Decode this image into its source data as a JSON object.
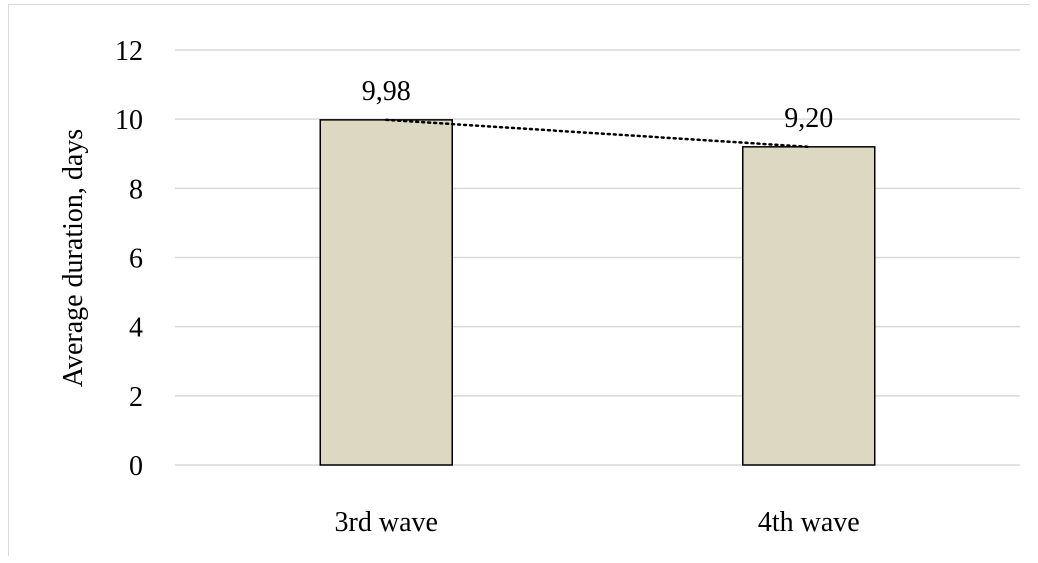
{
  "chart_data": {
    "type": "bar",
    "categories": [
      "3rd wave",
      "4th wave"
    ],
    "values": [
      9.98,
      9.2
    ],
    "data_labels": [
      "9,98",
      "9,20"
    ],
    "title": "",
    "xlabel": "",
    "ylabel": "Average duration, days",
    "ylim": [
      0,
      12
    ],
    "yticks": [
      0,
      2,
      4,
      6,
      8,
      10,
      12
    ],
    "ytick_labels": [
      "0",
      "2",
      "4",
      "6",
      "8",
      "10",
      "12"
    ],
    "grid": true,
    "trendline": "linear, dotted",
    "bar_color": "#ddd8c2",
    "bar_edge_color": "#000000",
    "grid_color": "#d9d9d9"
  }
}
